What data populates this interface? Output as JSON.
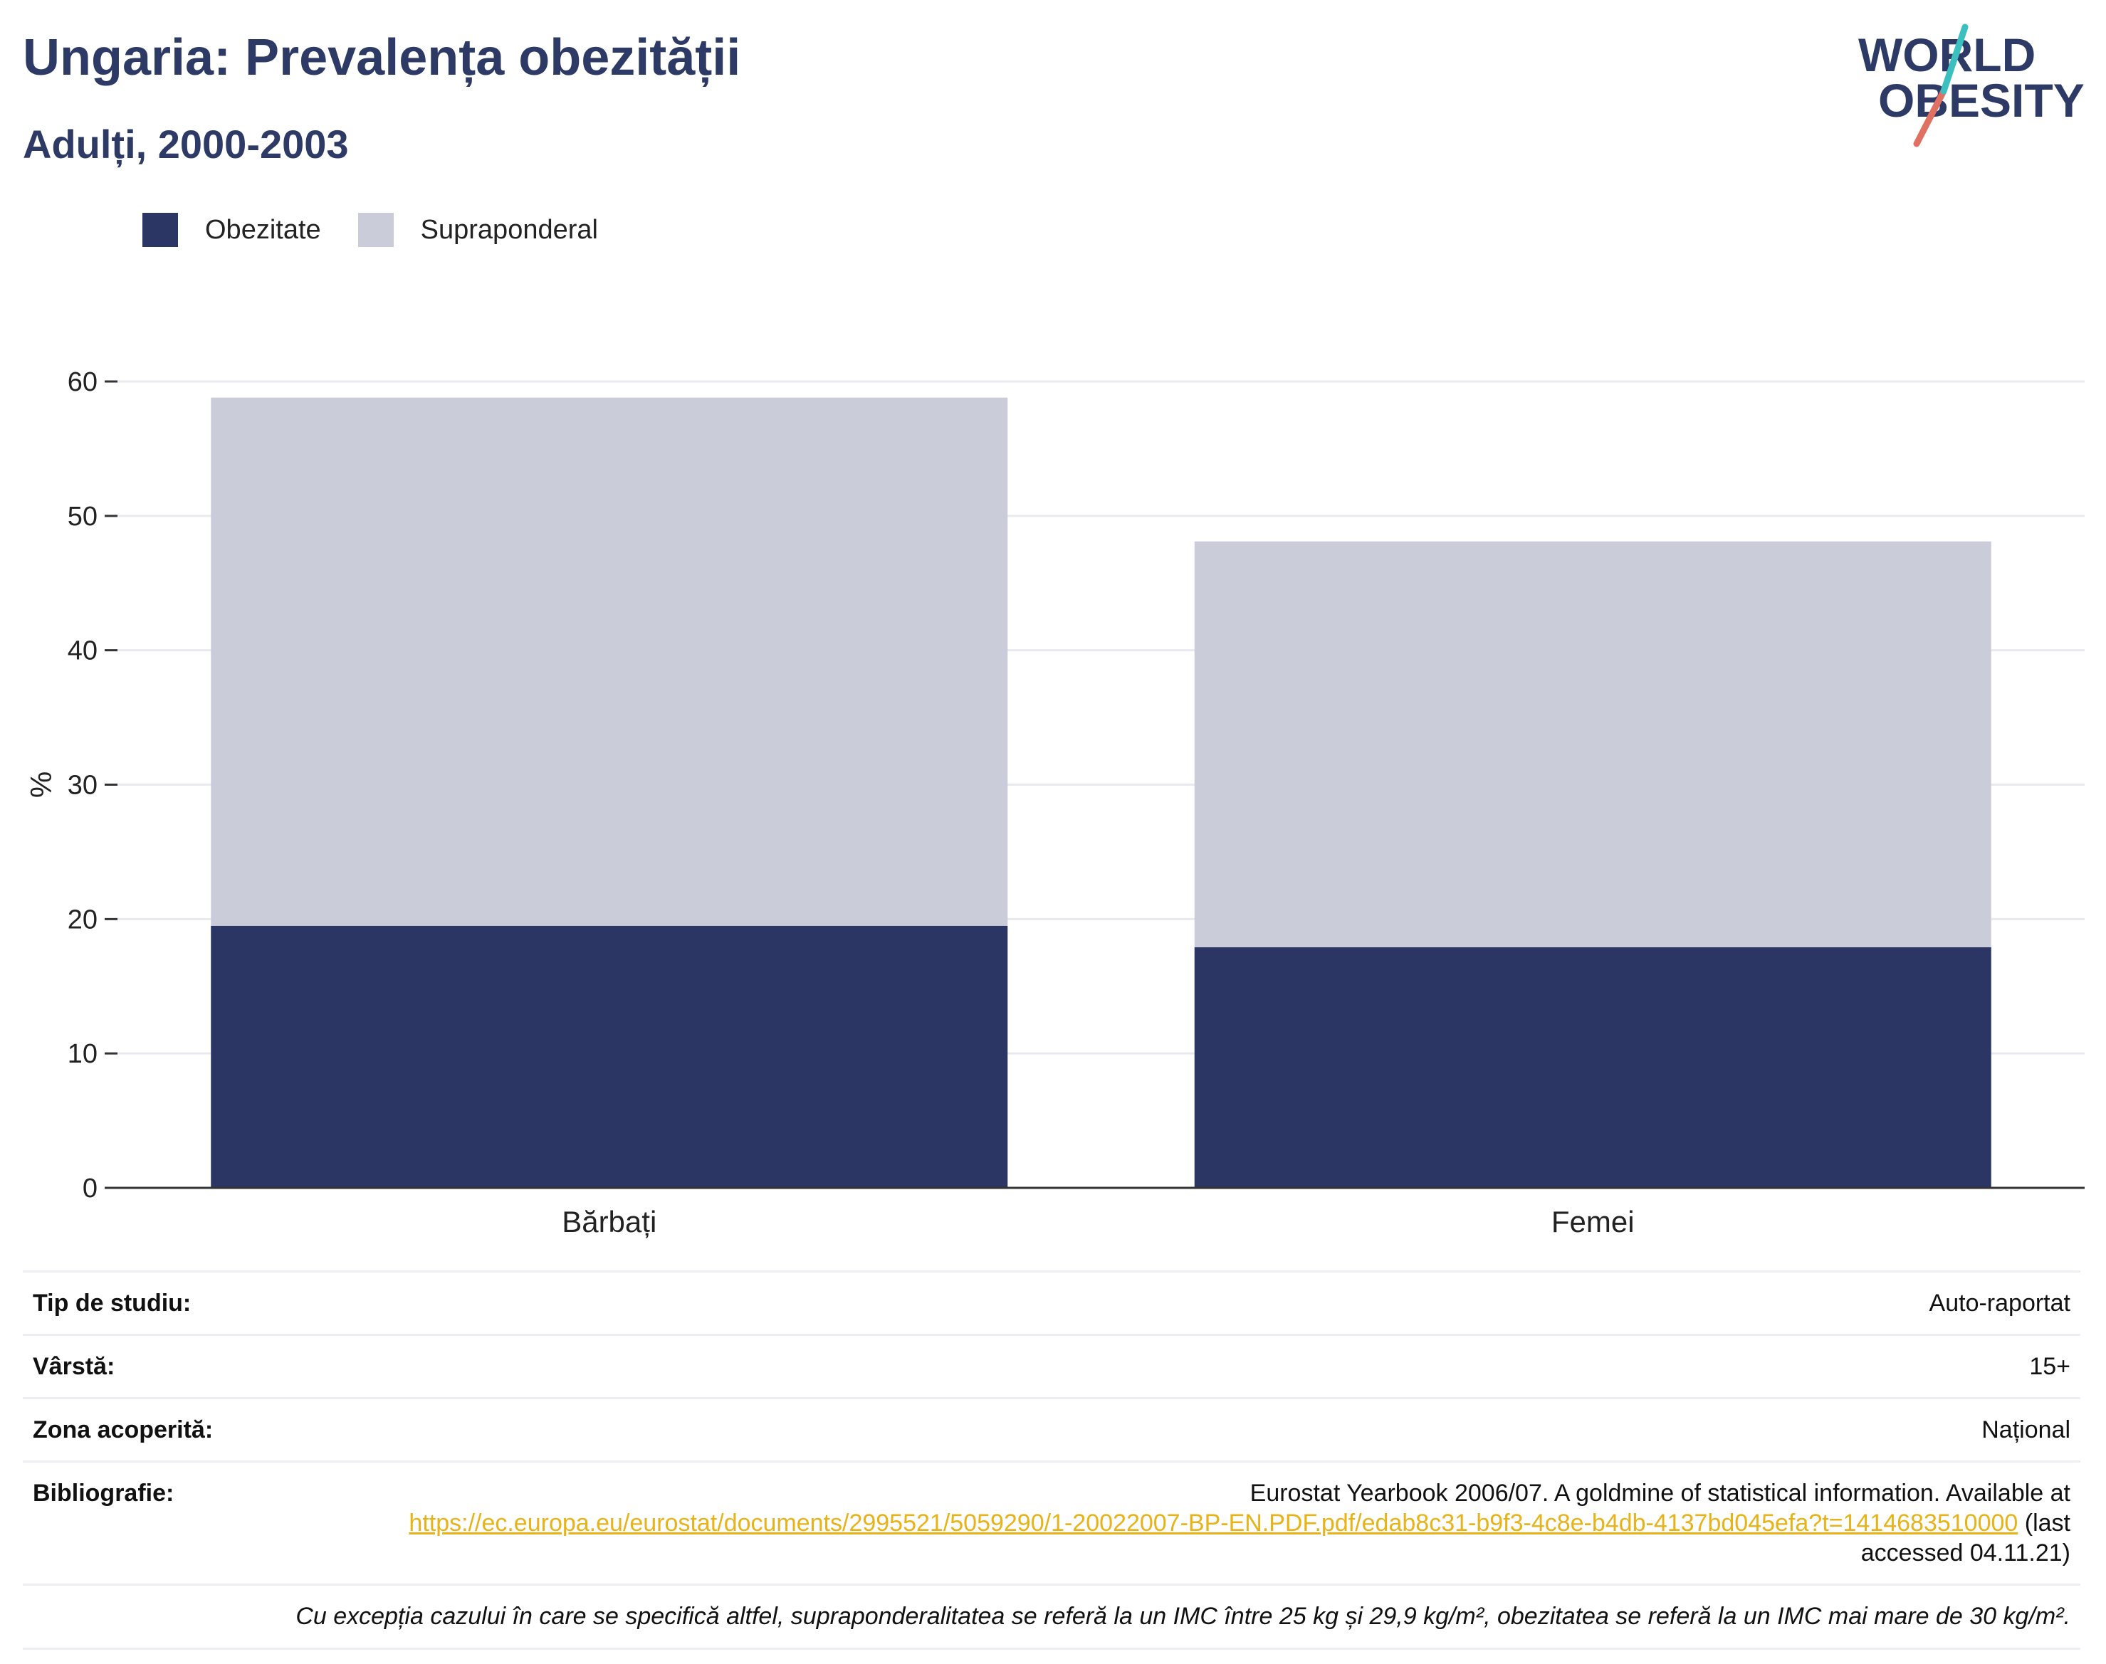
{
  "header": {
    "title": "Ungaria: Prevalența obezității",
    "subtitle": "Adulți, 2000-2003"
  },
  "logo": {
    "line1": "WORLD",
    "line2": "OBESITY",
    "icon": "world-obesity-logo"
  },
  "colors": {
    "obesity": "#2b3664",
    "overweight": "#cacdd9",
    "title": "#2d3a66",
    "grid": "#e8eaef",
    "axis": "#333333",
    "link": "#e8b219"
  },
  "chart_data": {
    "type": "bar",
    "stacked": true,
    "categories": [
      "Bărbați",
      "Femei"
    ],
    "series": [
      {
        "name": "Obezitate",
        "values": [
          19.5,
          17.9
        ]
      },
      {
        "name": "Supraponderal",
        "values": [
          39.3,
          30.2
        ]
      }
    ],
    "ylabel": "%",
    "xlabel": "",
    "ylim": [
      0,
      60
    ],
    "yticks": [
      0,
      10,
      20,
      30,
      40,
      50,
      60
    ],
    "grid": true,
    "legend_position": "top-left"
  },
  "info": {
    "rows": [
      {
        "label": "Tip de studiu:",
        "value": "Auto-raportat"
      },
      {
        "label": "Vârstă:",
        "value": "15+"
      },
      {
        "label": "Zona acoperită:",
        "value": "Național"
      }
    ],
    "bibliography": {
      "label": "Bibliografie:",
      "text_before": "Eurostat Yearbook 2006/07. A goldmine of statistical information. Available at",
      "link": "https://ec.europa.eu/eurostat/documents/2995521/5059290/1-20022007-BP-EN.PDF.pdf/edab8c31-b9f3-4c8e-b4db-4137bd045efa?t=1414683510000",
      "text_after": "(last accessed 04.11.21)"
    },
    "footnote": "Cu excepția cazului în care se specifică altfel, supraponderalitatea se referă la un IMC între 25 kg și 29,9 kg/m², obezitatea se referă la un IMC mai mare de 30 kg/m²."
  }
}
